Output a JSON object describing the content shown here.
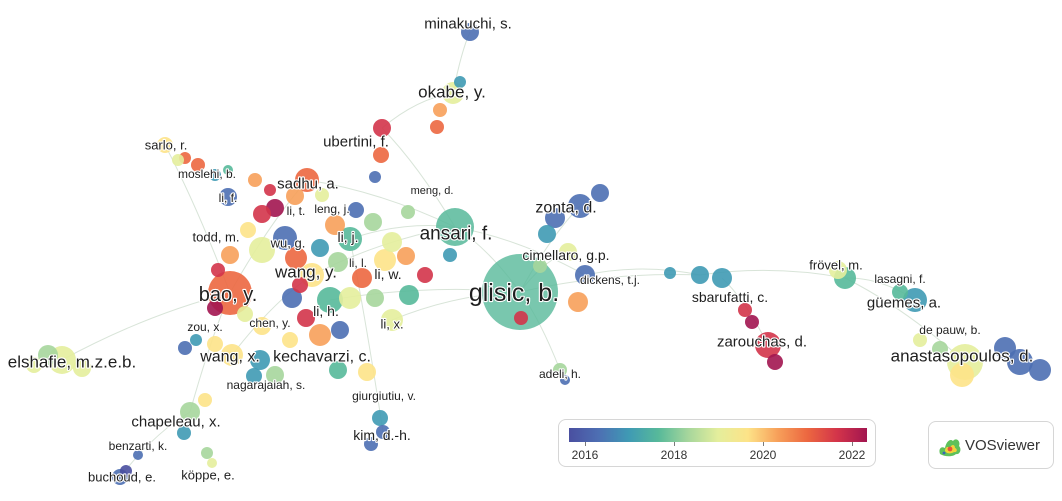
{
  "network": {
    "labels": [
      {
        "id": "minakuchi",
        "text": "minakuchi, s."
      },
      {
        "id": "okabe",
        "text": "okabe, y."
      },
      {
        "id": "sarlo",
        "text": "sarlo, r."
      },
      {
        "id": "ubertini",
        "text": "ubertini, f."
      },
      {
        "id": "moslehi",
        "text": "moslehi, b."
      },
      {
        "id": "meng",
        "text": "meng, d."
      },
      {
        "id": "sadhu",
        "text": "sadhu, a."
      },
      {
        "id": "lif",
        "text": "li, f."
      },
      {
        "id": "lit",
        "text": "li, t."
      },
      {
        "id": "leng",
        "text": "leng, j."
      },
      {
        "id": "zonta",
        "text": "zonta, d."
      },
      {
        "id": "ansari",
        "text": "ansari, f."
      },
      {
        "id": "todd",
        "text": "todd, m."
      },
      {
        "id": "lij",
        "text": "li, j."
      },
      {
        "id": "wug",
        "text": "wu, g."
      },
      {
        "id": "cimellaro",
        "text": "cimellaro, g.p."
      },
      {
        "id": "frovel",
        "text": "frövel, m."
      },
      {
        "id": "lil",
        "text": "li, l."
      },
      {
        "id": "wangy",
        "text": "wang, y."
      },
      {
        "id": "liw",
        "text": "li, w."
      },
      {
        "id": "dickens",
        "text": "dickens, t.j."
      },
      {
        "id": "lasagni",
        "text": "lasagni, f."
      },
      {
        "id": "glisic",
        "text": "glisic, b."
      },
      {
        "id": "bao",
        "text": "bao, y."
      },
      {
        "id": "sbarufatti",
        "text": "sbarufatti, c."
      },
      {
        "id": "guemes",
        "text": "güemes, a."
      },
      {
        "id": "lih",
        "text": "li, h."
      },
      {
        "id": "chen",
        "text": "chen, y."
      },
      {
        "id": "zou",
        "text": "zou, x."
      },
      {
        "id": "lix",
        "text": "li, x."
      },
      {
        "id": "depauw",
        "text": "de pauw, b."
      },
      {
        "id": "zarouchas",
        "text": "zarouchas, d."
      },
      {
        "id": "elshafie",
        "text": "elshafie, m.z.e.b."
      },
      {
        "id": "wangx",
        "text": "wang, x."
      },
      {
        "id": "kechavarzi",
        "text": "kechavarzi, c."
      },
      {
        "id": "anastasopoulos",
        "text": "anastasopoulos, d."
      },
      {
        "id": "adeli",
        "text": "adeli, h."
      },
      {
        "id": "nagarajaiah",
        "text": "nagarajaiah, s."
      },
      {
        "id": "giurgiutiu",
        "text": "giurgiutiu, v."
      },
      {
        "id": "chapeleau",
        "text": "chapeleau, x."
      },
      {
        "id": "kim",
        "text": "kim, d.-h."
      },
      {
        "id": "benzarti",
        "text": "benzarti, k."
      },
      {
        "id": "buchoud",
        "text": "buchoud, e."
      },
      {
        "id": "koppe",
        "text": "köppe, e."
      }
    ]
  },
  "legend": {
    "ticks": [
      "2016",
      "2018",
      "2020",
      "2022"
    ],
    "colors": [
      "#4a4fa0",
      "#4d6fb3",
      "#3f9ab4",
      "#57b99a",
      "#a6d69c",
      "#e4ee9c",
      "#fde388",
      "#f7a05a",
      "#ec6740",
      "#d3344a",
      "#a21550"
    ]
  },
  "brand": {
    "name": "VOSviewer"
  }
}
